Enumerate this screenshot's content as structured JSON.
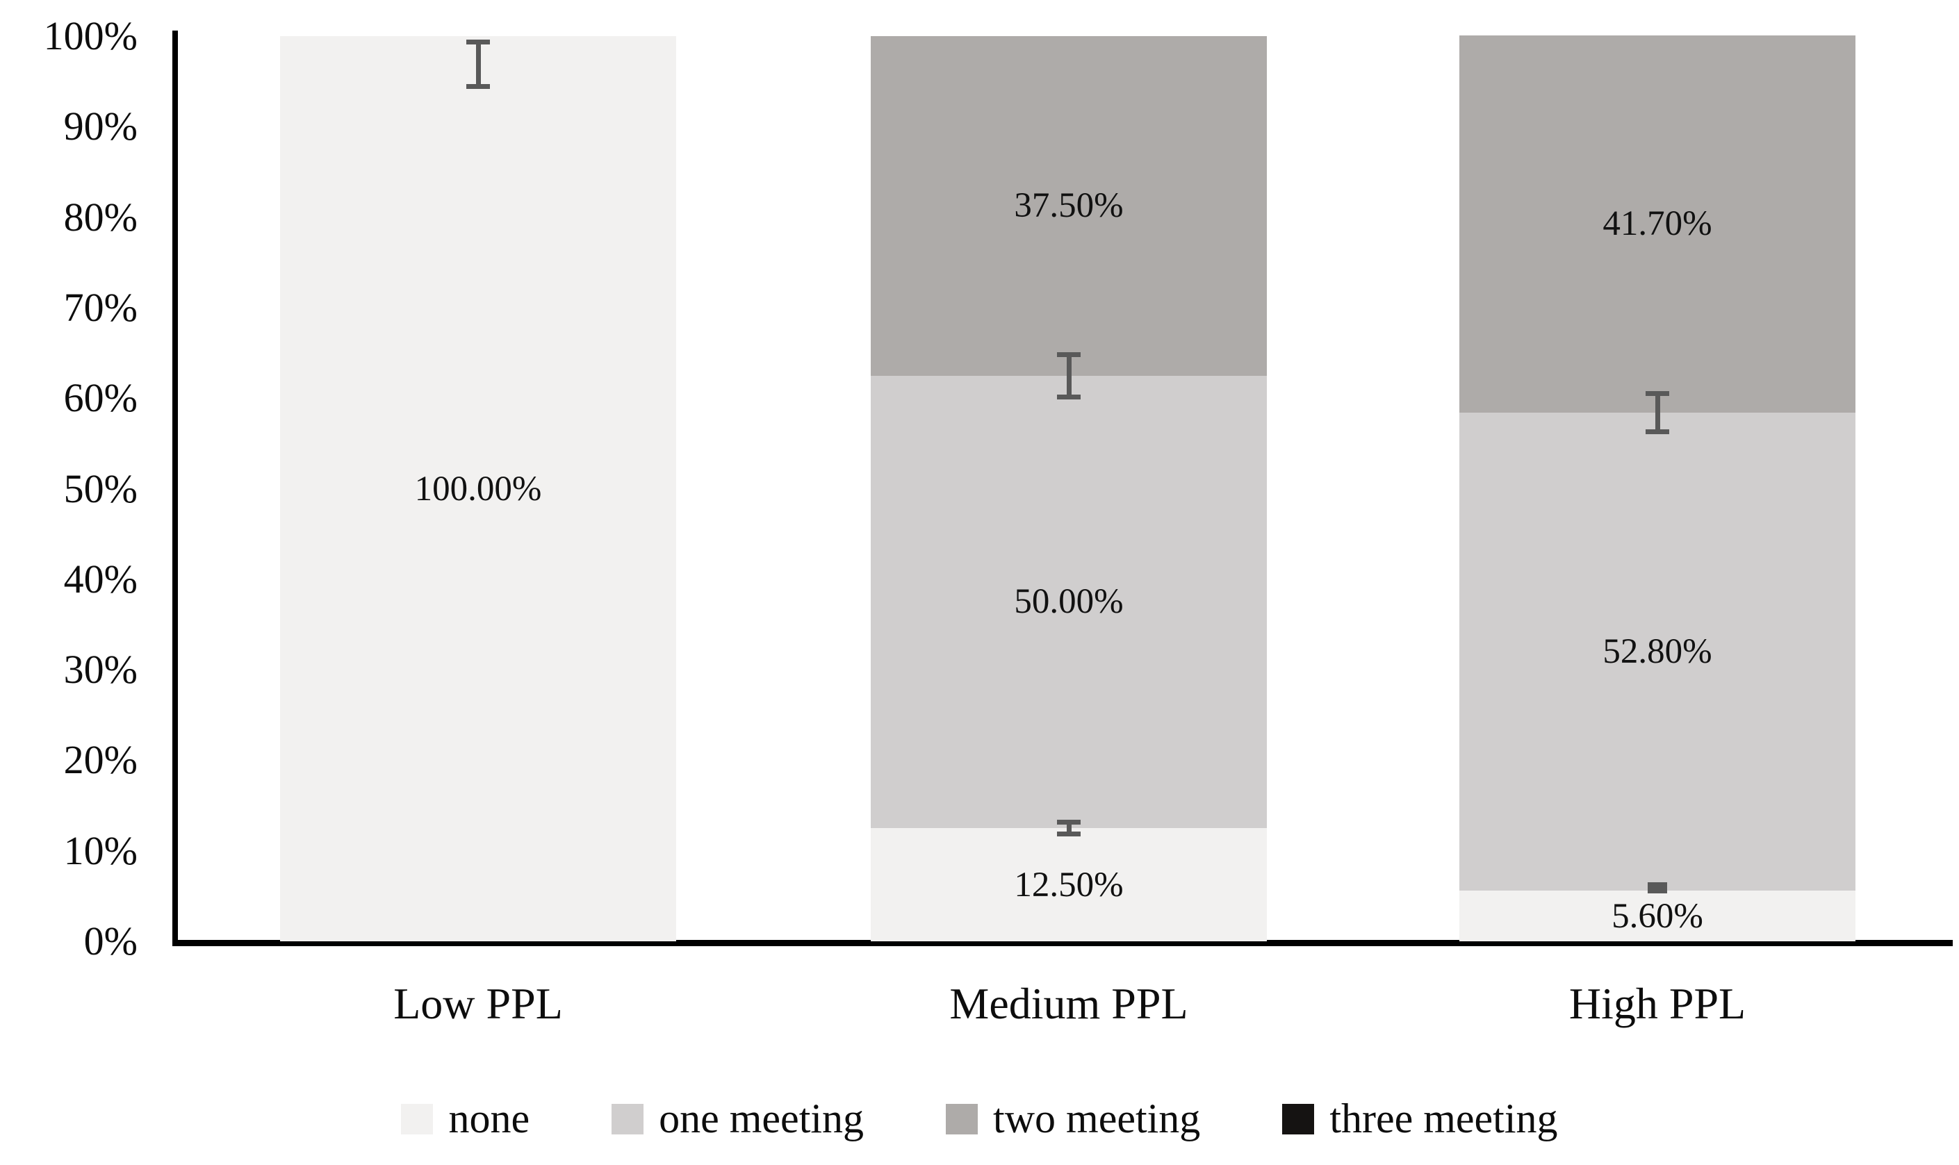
{
  "chart_data": {
    "type": "bar",
    "stacked": true,
    "orientation": "vertical",
    "title": "",
    "xlabel": "",
    "ylabel": "",
    "categories": [
      "Low PPL",
      "Medium PPL",
      "High PPL"
    ],
    "series": [
      {
        "name": "none",
        "color": "#F2F1F0",
        "values": [
          100.0,
          12.5,
          5.6
        ],
        "labels": [
          "100.00%",
          "12.50%",
          "5.60%"
        ]
      },
      {
        "name": "one meeting",
        "color": "#D0CECE",
        "values": [
          0,
          50.0,
          52.8
        ],
        "labels": [
          null,
          "50.00%",
          "52.80%"
        ]
      },
      {
        "name": "two meeting",
        "color": "#AEABA9",
        "values": [
          0,
          37.5,
          41.7
        ],
        "labels": [
          null,
          "37.50%",
          "41.70%"
        ]
      },
      {
        "name": "three meeting",
        "color": "#151312",
        "values": [
          0,
          0,
          0
        ],
        "labels": [
          null,
          null,
          null
        ]
      }
    ],
    "error_bars": [
      {
        "category": 0,
        "center": 96.9,
        "half": 2.7,
        "style": "ibeam"
      },
      {
        "category": 1,
        "center": 62.5,
        "half": 2.6,
        "style": "ibeam"
      },
      {
        "category": 1,
        "center": 12.5,
        "half": 0.9,
        "style": "ibeam"
      },
      {
        "category": 2,
        "center": 58.4,
        "half": 2.4,
        "style": "ibeam"
      },
      {
        "category": 2,
        "center": 5.9,
        "half": 0.6,
        "style": "dash"
      }
    ],
    "error_bar_color": "#595959",
    "yticks": [
      "100%",
      "90%",
      "80%",
      "70%",
      "60%",
      "50%",
      "40%",
      "30%",
      "20%",
      "10%",
      "0%"
    ],
    "ytick_values": [
      100,
      90,
      80,
      70,
      60,
      50,
      40,
      30,
      20,
      10,
      0
    ],
    "ylim": [
      0,
      100
    ],
    "grid": false,
    "legend": [
      "none",
      "one meeting",
      "two meeting",
      "three meeting"
    ],
    "legend_position": "bottom"
  }
}
